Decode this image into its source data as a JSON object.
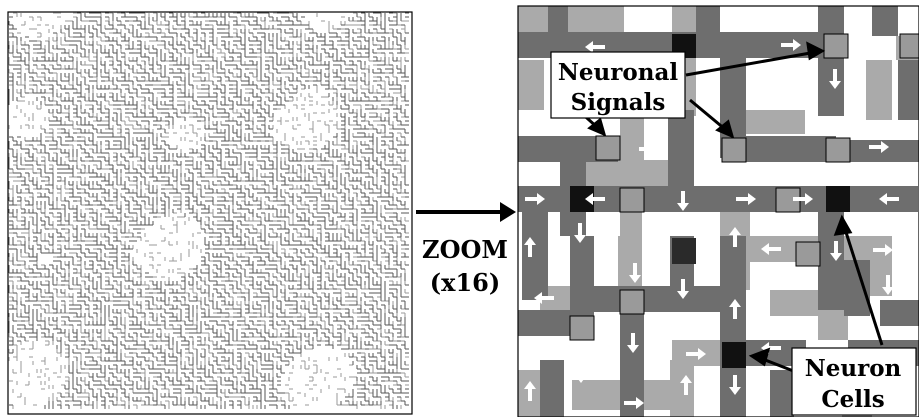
{
  "zoom_label_line1": "ZOOM",
  "zoom_label_line2": "(x16)",
  "callout_signals_line1": "Neuronal",
  "callout_signals_line2": "Signals",
  "callout_cells_line1": "Neuron",
  "callout_cells_line2": "Cells",
  "colors": {
    "dark_path": "#6e6e6e",
    "light_path": "#aaaaaa",
    "background": "#ffffff",
    "cell": "#111111",
    "signal": "#999999",
    "arrow": "#ffffff",
    "callout_line": "#000000"
  },
  "overview_grid_seed": 20240517
}
